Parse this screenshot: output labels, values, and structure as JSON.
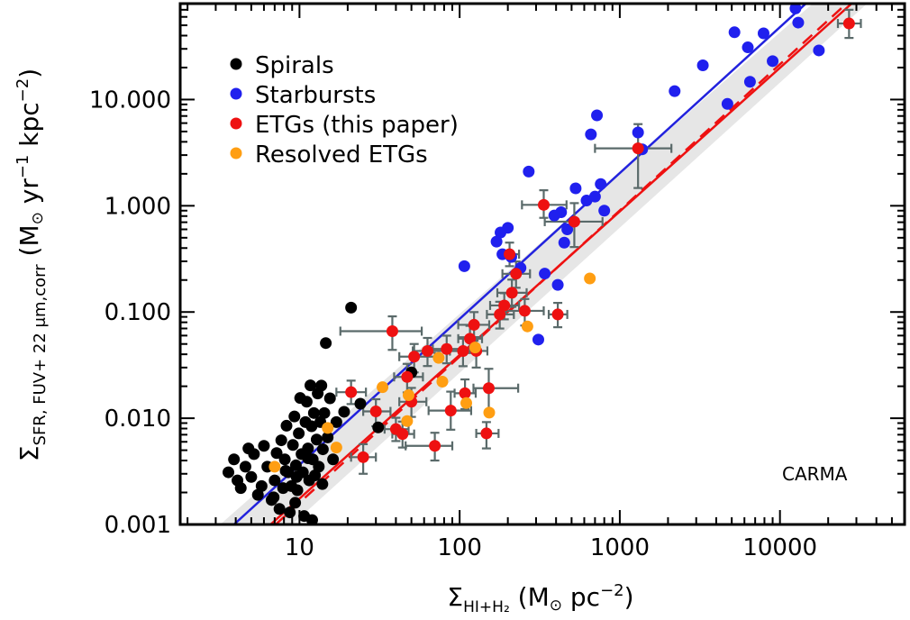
{
  "chart_data": {
    "type": "scatter",
    "x_scale": "log",
    "y_scale": "log",
    "xlim": [
      1.8,
      60000
    ],
    "ylim": [
      0.001,
      80
    ],
    "x_ticks": [
      {
        "value": 10,
        "label": "10"
      },
      {
        "value": 100,
        "label": "100"
      },
      {
        "value": 1000,
        "label": "1000"
      },
      {
        "value": 10000,
        "label": "10000"
      }
    ],
    "y_ticks": [
      {
        "value": 0.001,
        "label": "0.001"
      },
      {
        "value": 0.01,
        "label": "0.010"
      },
      {
        "value": 0.1,
        "label": "0.100"
      },
      {
        "value": 1,
        "label": "1.000"
      },
      {
        "value": 10,
        "label": "10.000"
      }
    ],
    "xlabel": {
      "sigma": "Σ",
      "sub": "HI+H₂",
      "rest": " (M",
      "sun": "⊙",
      "unit": " pc",
      "sup": "−2",
      "close": ")"
    },
    "ylabel": {
      "sigma": "Σ",
      "sub": "SFR, FUV+ 22 μm,corr",
      "rest": " (M",
      "sun": "⊙",
      "unit1": " yr",
      "sup1": "−1",
      "unit2": " kpc",
      "sup2": "−2",
      "close": ")"
    },
    "annotation": "CARMA",
    "legend_position": "top-left",
    "band": {
      "upper": [
        [
          3.2,
          0.001
        ],
        [
          16000,
          80
        ]
      ],
      "lower": [
        [
          9.0,
          0.001
        ],
        [
          35000,
          80
        ]
      ],
      "color": "#e6e6e6"
    },
    "lines": [
      {
        "name": "starburst-fit",
        "color": "#2222dd",
        "dash": "",
        "points": [
          [
            3.9,
            0.001
          ],
          [
            14500,
            80
          ]
        ]
      },
      {
        "name": "etg-fit",
        "color": "#ee1111",
        "dash": "",
        "points": [
          [
            6.6,
            0.001
          ],
          [
            28000,
            80
          ]
        ]
      },
      {
        "name": "etg-fit-dashed",
        "color": "#ee1111",
        "dash": "14,8",
        "points": [
          [
            7.1,
            0.001
          ],
          [
            26000,
            80
          ]
        ]
      }
    ],
    "series": [
      {
        "name": "Spirals",
        "color": "#000000",
        "points": [
          [
            3.6,
            0.0031
          ],
          [
            3.9,
            0.0041
          ],
          [
            4.1,
            0.0026
          ],
          [
            4.3,
            0.0022
          ],
          [
            4.6,
            0.0035
          ],
          [
            4.8,
            0.0052
          ],
          [
            5.0,
            0.0028
          ],
          [
            5.2,
            0.0046
          ],
          [
            5.5,
            0.0019
          ],
          [
            5.8,
            0.0023
          ],
          [
            6.0,
            0.0055
          ],
          [
            6.3,
            0.0035
          ],
          [
            6.7,
            0.0017
          ],
          [
            7.0,
            0.0026
          ],
          [
            7.2,
            0.0047
          ],
          [
            7.5,
            0.0014
          ],
          [
            7.7,
            0.0062
          ],
          [
            7.9,
            0.0022
          ],
          [
            8.1,
            0.0041
          ],
          [
            8.3,
            0.0085
          ],
          [
            8.5,
            0.0031
          ],
          [
            8.7,
            0.0013
          ],
          [
            8.9,
            0.0023
          ],
          [
            9.1,
            0.0056
          ],
          [
            9.3,
            0.0104
          ],
          [
            9.5,
            0.0036
          ],
          [
            9.7,
            0.0021
          ],
          [
            9.9,
            0.0072
          ],
          [
            10.1,
            0.0155
          ],
          [
            10.3,
            0.0046
          ],
          [
            10.5,
            0.0031
          ],
          [
            10.7,
            0.0012
          ],
          [
            10.9,
            0.0092
          ],
          [
            11.1,
            0.0143
          ],
          [
            11.3,
            0.0052
          ],
          [
            11.5,
            0.0026
          ],
          [
            11.7,
            0.0204
          ],
          [
            11.9,
            0.0084
          ],
          [
            12.1,
            0.0041
          ],
          [
            12.3,
            0.0112
          ],
          [
            12.5,
            0.0029
          ],
          [
            12.8,
            0.0063
          ],
          [
            13.0,
            0.0171
          ],
          [
            13.2,
            0.0035
          ],
          [
            13.5,
            0.0092
          ],
          [
            13.7,
            0.0203
          ],
          [
            14.0,
            0.0051
          ],
          [
            14.3,
            0.0112
          ],
          [
            14.6,
            0.051
          ],
          [
            15.0,
            0.0066
          ],
          [
            15.5,
            0.0154
          ],
          [
            16.2,
            0.0041
          ],
          [
            17.0,
            0.0092
          ],
          [
            19.0,
            0.0115
          ],
          [
            21.0,
            0.11
          ],
          [
            24.0,
            0.0137
          ],
          [
            31.0,
            0.0082
          ],
          [
            50.0,
            0.027
          ],
          [
            9.4,
            0.0016
          ],
          [
            12.0,
            0.0011
          ],
          [
            8.2,
            0.0032
          ],
          [
            11.3,
            0.0042
          ],
          [
            6.9,
            0.0018
          ],
          [
            9.6,
            0.0028
          ],
          [
            13.9,
            0.0024
          ]
        ]
      },
      {
        "name": "Starbursts",
        "color": "#2020ee",
        "points": [
          [
            107,
            0.27
          ],
          [
            170,
            0.46
          ],
          [
            180,
            0.56
          ],
          [
            185,
            0.35
          ],
          [
            200,
            0.62
          ],
          [
            210,
            0.33
          ],
          [
            240,
            0.26
          ],
          [
            270,
            2.1
          ],
          [
            310,
            0.055
          ],
          [
            340,
            0.23
          ],
          [
            390,
            0.81
          ],
          [
            410,
            0.18
          ],
          [
            430,
            0.87
          ],
          [
            450,
            0.45
          ],
          [
            470,
            0.6
          ],
          [
            530,
            1.46
          ],
          [
            620,
            1.12
          ],
          [
            660,
            4.7
          ],
          [
            700,
            1.22
          ],
          [
            720,
            7.1
          ],
          [
            760,
            1.6
          ],
          [
            800,
            0.9
          ],
          [
            1300,
            4.9
          ],
          [
            1380,
            3.4
          ],
          [
            2200,
            12.0
          ],
          [
            3300,
            21.0
          ],
          [
            4700,
            9.1
          ],
          [
            5200,
            43.0
          ],
          [
            6300,
            31.0
          ],
          [
            6500,
            14.7
          ],
          [
            7900,
            42.0
          ],
          [
            9000,
            23.0
          ],
          [
            12500,
            72.0
          ],
          [
            13000,
            53.0
          ],
          [
            17500,
            29.0
          ]
        ]
      },
      {
        "name": "ETGs (this paper)",
        "color": "#ee1111",
        "error_color": "#5a6a6a",
        "points": [
          {
            "x": 21,
            "y": 0.0176,
            "xerr": [
              4,
              5
            ],
            "yerr": [
              0.004,
              0.005
            ]
          },
          {
            "x": 25,
            "y": 0.0043,
            "xerr": [
              4,
              5
            ],
            "yerr": [
              0.0013,
              0.0014
            ]
          },
          {
            "x": 30,
            "y": 0.0116,
            "xerr": [
              5,
              7
            ],
            "yerr": [
              0.0032,
              0.0035
            ]
          },
          {
            "x": 38,
            "y": 0.066,
            "xerr": [
              20,
              20
            ],
            "yerr": [
              0.022,
              0.025
            ]
          },
          {
            "x": 40,
            "y": 0.0079,
            "xerr": [
              6,
              8
            ],
            "yerr": [
              0.0018,
              0.0022
            ]
          },
          {
            "x": 44,
            "y": 0.0071,
            "xerr": [
              6,
              8
            ],
            "yerr": [
              0.0018,
              0.0022
            ]
          },
          {
            "x": 47,
            "y": 0.0245,
            "xerr": [
              8,
              12
            ],
            "yerr": [
              0.007,
              0.008
            ]
          },
          {
            "x": 50,
            "y": 0.0143,
            "xerr": [
              8,
              12
            ],
            "yerr": [
              0.004,
              0.005
            ]
          },
          {
            "x": 52,
            "y": 0.038,
            "xerr": [
              10,
              18
            ],
            "yerr": [
              0.011,
              0.012
            ]
          },
          {
            "x": 63,
            "y": 0.043,
            "xerr": [
              12,
              20
            ],
            "yerr": [
              0.012,
              0.014
            ]
          },
          {
            "x": 70,
            "y": 0.0055,
            "xerr": [
              24,
              20
            ],
            "yerr": [
              0.0015,
              0.0018
            ]
          },
          {
            "x": 83,
            "y": 0.0449,
            "xerr": [
              15,
              22
            ],
            "yerr": [
              0.012,
              0.015
            ]
          },
          {
            "x": 88,
            "y": 0.0118,
            "xerr": [
              24,
              30
            ],
            "yerr": [
              0.004,
              0.006
            ]
          },
          {
            "x": 105,
            "y": 0.0429,
            "xerr": [
              18,
              22
            ],
            "yerr": [
              0.012,
              0.015
            ]
          },
          {
            "x": 108,
            "y": 0.0172,
            "xerr": [
              15,
              18
            ],
            "yerr": [
              0.005,
              0.006
            ]
          },
          {
            "x": 116,
            "y": 0.0561,
            "xerr": [
              18,
              22
            ],
            "yerr": [
              0.015,
              0.018
            ]
          },
          {
            "x": 123,
            "y": 0.0758,
            "xerr": [
              25,
              30
            ],
            "yerr": [
              0.022,
              0.024
            ]
          },
          {
            "x": 127,
            "y": 0.043,
            "xerr": [
              18,
              22
            ],
            "yerr": [
              0.013,
              0.015
            ]
          },
          {
            "x": 147,
            "y": 0.0072,
            "xerr": [
              20,
              28
            ],
            "yerr": [
              0.002,
              0.002
            ]
          },
          {
            "x": 152,
            "y": 0.0192,
            "xerr": [
              30,
              80
            ],
            "yerr": [
              0.008,
              0.01
            ]
          },
          {
            "x": 178,
            "y": 0.0949,
            "xerr": [
              30,
              40
            ],
            "yerr": [
              0.025,
              0.03
            ]
          },
          {
            "x": 190,
            "y": 0.1153,
            "xerr": [
              35,
              45
            ],
            "yerr": [
              0.03,
              0.035
            ]
          },
          {
            "x": 205,
            "y": 0.35,
            "xerr": [
              25,
              30
            ],
            "yerr": [
              0.08,
              0.1
            ]
          },
          {
            "x": 212,
            "y": 0.1518,
            "xerr": [
              40,
              50
            ],
            "yerr": [
              0.04,
              0.05
            ]
          },
          {
            "x": 225,
            "y": 0.2291,
            "xerr": [
              40,
              50
            ],
            "yerr": [
              0.06,
              0.07
            ]
          },
          {
            "x": 255,
            "y": 0.1026,
            "xerr": [
              60,
              80
            ],
            "yerr": [
              0.028,
              0.03
            ]
          },
          {
            "x": 335,
            "y": 1.02,
            "xerr": [
              90,
              130
            ],
            "yerr": [
              0.25,
              0.38
            ]
          },
          {
            "x": 410,
            "y": 0.0949,
            "xerr": [
              50,
              60
            ],
            "yerr": [
              0.023,
              0.027
            ]
          },
          {
            "x": 520,
            "y": 0.709,
            "xerr": [
              180,
              260
            ],
            "yerr": [
              0.3,
              0.35
            ]
          },
          {
            "x": 1300,
            "y": 3.47,
            "xerr": [
              600,
              800
            ],
            "yerr": [
              2.0,
              2.4
            ]
          },
          {
            "x": 27000,
            "y": 52.0,
            "xerr": [
              4000,
              5000
            ],
            "yerr": [
              14,
              18
            ]
          }
        ]
      },
      {
        "name": "Resolved ETGs",
        "color": "#ff9e12",
        "points": [
          [
            7,
            0.0035
          ],
          [
            15,
            0.0081
          ],
          [
            17,
            0.0053
          ],
          [
            33,
            0.0196
          ],
          [
            47,
            0.0094
          ],
          [
            48,
            0.0165
          ],
          [
            74,
            0.037
          ],
          [
            78,
            0.0221
          ],
          [
            110,
            0.0139
          ],
          [
            125,
            0.0463
          ],
          [
            153,
            0.0113
          ],
          [
            265,
            0.0732
          ],
          [
            650,
            0.207
          ]
        ]
      }
    ]
  }
}
